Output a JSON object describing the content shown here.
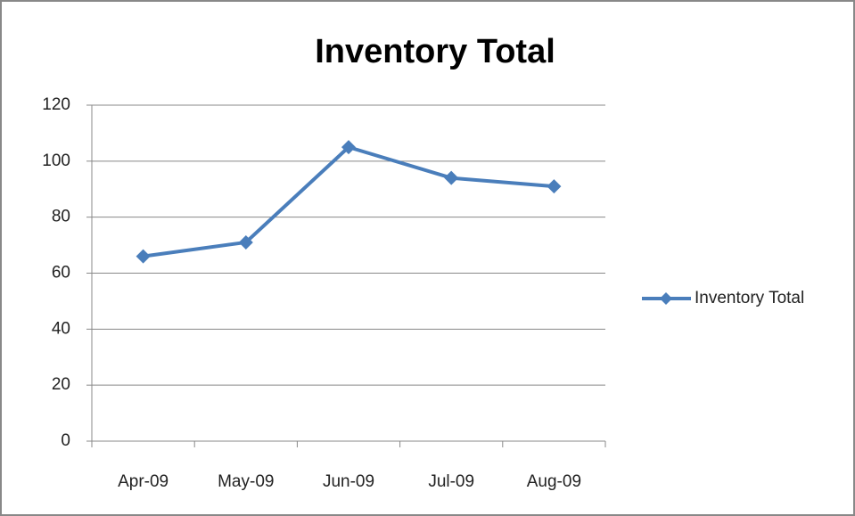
{
  "chart_data": {
    "type": "line",
    "title": "Inventory Total",
    "categories": [
      "Apr-09",
      "May-09",
      "Jun-09",
      "Jul-09",
      "Aug-09"
    ],
    "series": [
      {
        "name": "Inventory Total",
        "color": "#4a7ebb",
        "values": [
          66,
          71,
          105,
          94,
          91
        ]
      }
    ],
    "ylim": [
      0,
      120
    ],
    "yticks": [
      0,
      20,
      40,
      60,
      80,
      100,
      120
    ],
    "grid": true,
    "legend": "right"
  }
}
